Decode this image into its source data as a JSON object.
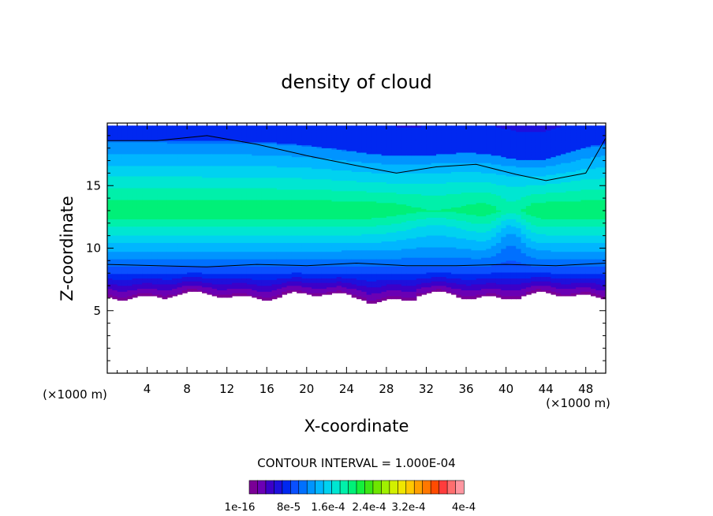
{
  "chart_data": {
    "type": "heatmap",
    "title": "density of cloud",
    "xlabel": "X-coordinate",
    "ylabel": "Z-coordinate",
    "x_unit": "(×1000 m)",
    "z_unit": "(×1000 m)",
    "xlim": [
      0,
      50
    ],
    "ylim": [
      0,
      20
    ],
    "x_ticks": [
      4,
      8,
      12,
      16,
      20,
      24,
      28,
      32,
      36,
      40,
      44,
      48
    ],
    "y_ticks": [
      5,
      10,
      15
    ],
    "grid": false,
    "contour_interval_label": "CONTOUR INTERVAL = 1.000E-04",
    "colorbar": {
      "colors": [
        "#7a0096",
        "#6b00b4",
        "#3c00c8",
        "#1e10dc",
        "#0028f0",
        "#0a50ff",
        "#0070ff",
        "#0094ff",
        "#00b6ff",
        "#00d2f0",
        "#00e6d2",
        "#00f0aa",
        "#00f078",
        "#14f03c",
        "#3ce614",
        "#6ee600",
        "#a0f000",
        "#d2f000",
        "#f0e600",
        "#ffc800",
        "#ffa000",
        "#ff7800",
        "#ff4b00",
        "#ff3c3c",
        "#ff6e6e",
        "#ff96a0"
      ],
      "tick_labels": [
        "1e-16",
        "8e-5",
        "1.6e-4",
        "2.4e-4",
        "3.2e-4",
        "4e-4"
      ]
    },
    "field": {
      "cloud_base_km": 6.2,
      "cloud_top_km": 19.8,
      "max_density_level_km": 13.0,
      "contour_lines": [
        {
          "x": [
            0,
            5,
            10,
            15,
            20,
            25,
            29,
            33,
            37,
            41,
            44,
            48,
            50
          ],
          "z": [
            18.6,
            18.6,
            19.0,
            18.3,
            17.4,
            16.6,
            16.0,
            16.5,
            16.7,
            15.9,
            15.4,
            16.0,
            18.8
          ]
        },
        {
          "x": [
            0,
            5,
            10,
            15,
            20,
            25,
            30,
            35,
            40,
            45,
            50
          ],
          "z": [
            8.7,
            8.6,
            8.5,
            8.7,
            8.6,
            8.8,
            8.6,
            8.6,
            8.7,
            8.6,
            8.8
          ]
        }
      ]
    }
  }
}
